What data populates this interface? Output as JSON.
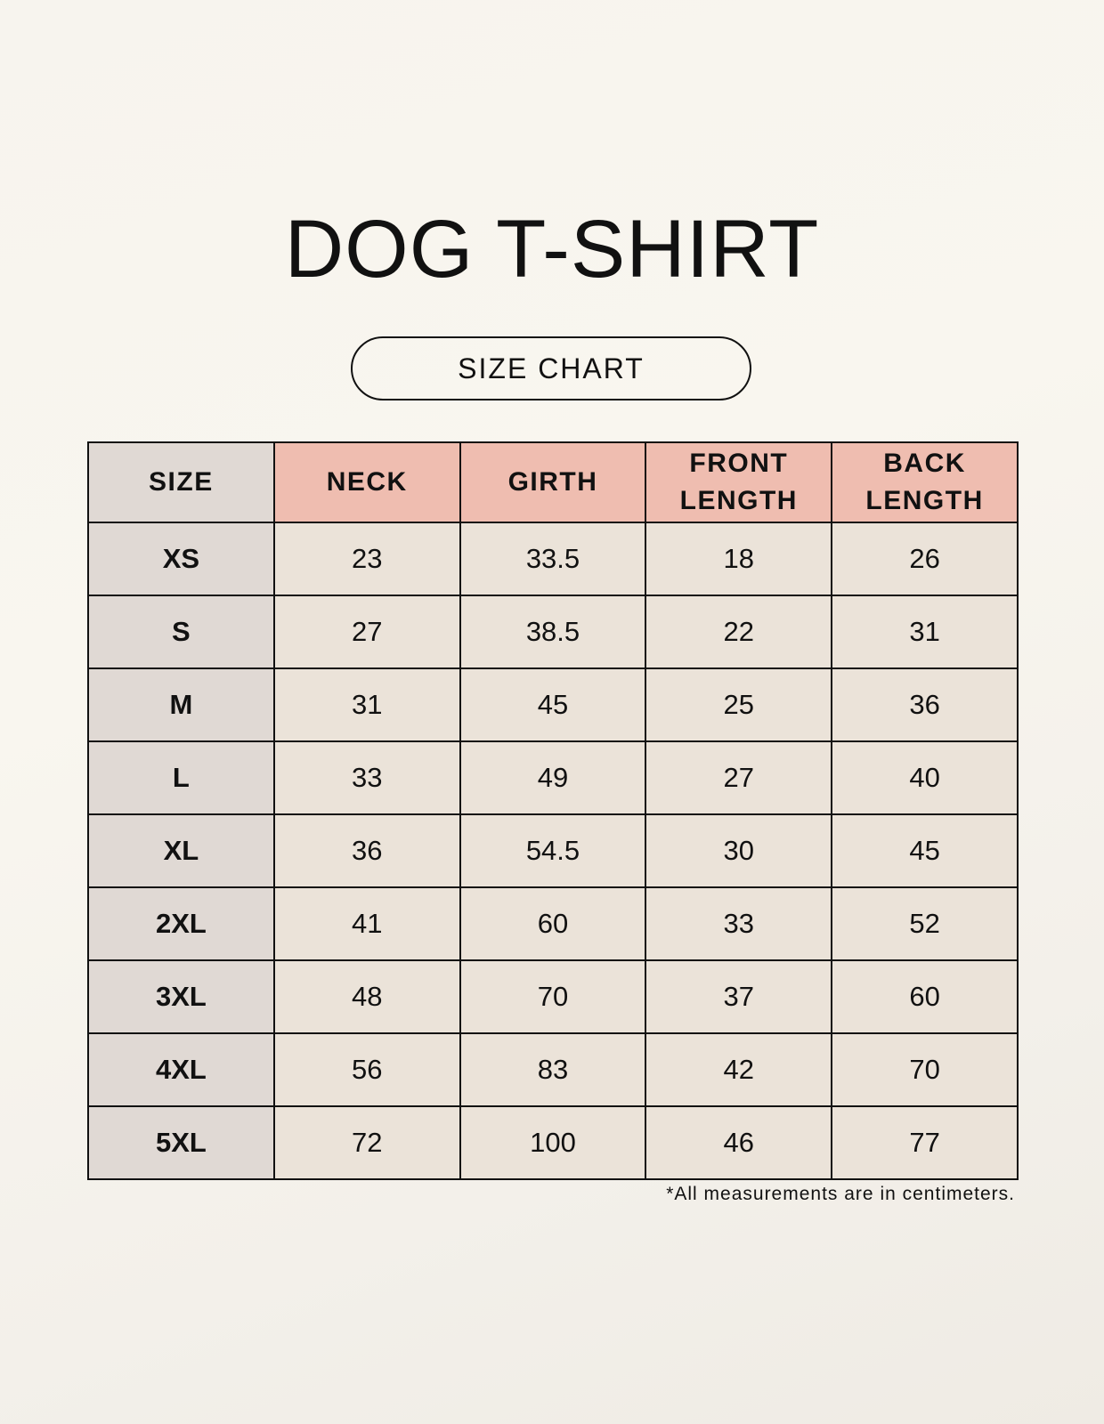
{
  "title": "DOG T-SHIRT",
  "subtitle": "SIZE CHART",
  "table": {
    "headers": [
      "SIZE",
      "NECK",
      "GIRTH",
      "FRONT LENGTH",
      "BACK LENGTH"
    ],
    "rows": [
      [
        "XS",
        "23",
        "33.5",
        "18",
        "26"
      ],
      [
        "S",
        "27",
        "38.5",
        "22",
        "31"
      ],
      [
        "M",
        "31",
        "45",
        "25",
        "36"
      ],
      [
        "L",
        "33",
        "49",
        "27",
        "40"
      ],
      [
        "XL",
        "36",
        "54.5",
        "30",
        "45"
      ],
      [
        "2XL",
        "41",
        "60",
        "33",
        "52"
      ],
      [
        "3XL",
        "48",
        "70",
        "37",
        "60"
      ],
      [
        "4XL",
        "56",
        "83",
        "42",
        "70"
      ],
      [
        "5XL",
        "72",
        "100",
        "46",
        "77"
      ]
    ]
  },
  "footnote": "*All measurements are in centimeters.",
  "colors": {
    "header": "#efbdb0",
    "size_column": "#e0d9d4",
    "cell": "#ebe3d9"
  }
}
